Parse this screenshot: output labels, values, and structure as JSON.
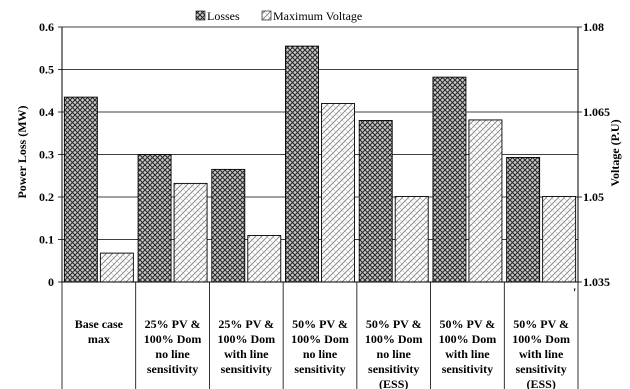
{
  "chart_data": {
    "type": "bar",
    "legend": {
      "placement": "top",
      "entries": [
        "Losses",
        "Maximum Voltage"
      ]
    },
    "categories": [
      [
        "Base case",
        "max"
      ],
      [
        "25% PV &",
        "100% Dom",
        "no line",
        "sensitivity"
      ],
      [
        "25% PV &",
        "100% Dom",
        "with line",
        "sensitivity"
      ],
      [
        "50% PV &",
        "100% Dom",
        "no line",
        "sensitivity"
      ],
      [
        "50% PV &",
        "100% Dom",
        "no line",
        "sensitivity",
        "(ESS)"
      ],
      [
        "50% PV &",
        "100% Dom",
        "with line",
        "sensitivity"
      ],
      [
        "50% PV &",
        "100% Dom",
        "with line",
        "sensitivity",
        "(ESS)"
      ]
    ],
    "series": [
      {
        "name": "Losses",
        "axis": "left",
        "values": [
          0.435,
          0.3,
          0.265,
          0.555,
          0.38,
          0.482,
          0.293
        ]
      },
      {
        "name": "Maximum Voltage",
        "axis": "right",
        "values": [
          1.0401,
          1.0524,
          1.0432,
          1.0665,
          1.0501,
          1.0636,
          1.0501
        ]
      }
    ],
    "y_left": {
      "label": "Power Loss (MW)",
      "lim": [
        0,
        0.6
      ],
      "ticks": [
        "0",
        "0.1",
        "0.2",
        "0.3",
        "0.4",
        "0.5",
        "0.6"
      ]
    },
    "y_right": {
      "label": "Voltage (P.U)",
      "lim": [
        1.035,
        1.08
      ],
      "ticks": [
        "1.035",
        "1.05",
        "1.065",
        "1.08"
      ]
    },
    "annotation": "'",
    "grid": true
  }
}
